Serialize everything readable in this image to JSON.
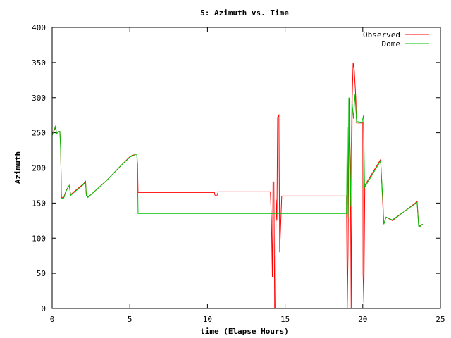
{
  "chart_data": {
    "type": "line",
    "title": "5: Azimuth vs. Time",
    "xlabel": "time (Elapse Hours)",
    "ylabel": "Azimuth",
    "xlim": [
      0,
      25
    ],
    "ylim": [
      0,
      400
    ],
    "xticks": [
      0,
      5,
      10,
      15,
      20,
      25
    ],
    "yticks": [
      0,
      50,
      100,
      150,
      200,
      250,
      300,
      350,
      400
    ],
    "grid": false,
    "legend_position": "top-right",
    "series": [
      {
        "name": "Observed",
        "color": "#ff0000",
        "points": [
          [
            0,
            247
          ],
          [
            0.2,
            257
          ],
          [
            0.3,
            249
          ],
          [
            0.45,
            252
          ],
          [
            0.5,
            252
          ],
          [
            0.55,
            227
          ],
          [
            0.6,
            158
          ],
          [
            0.75,
            158
          ],
          [
            0.9,
            168
          ],
          [
            1.1,
            175
          ],
          [
            1.2,
            162
          ],
          [
            1.4,
            166
          ],
          [
            2.0,
            177
          ],
          [
            2.15,
            181
          ],
          [
            2.2,
            162
          ],
          [
            2.3,
            159
          ],
          [
            2.5,
            162
          ],
          [
            3.5,
            182
          ],
          [
            4.5,
            205
          ],
          [
            5.05,
            217
          ],
          [
            5.45,
            220
          ],
          [
            5.5,
            205
          ],
          [
            5.52,
            175
          ],
          [
            5.53,
            165
          ],
          [
            10.45,
            165
          ],
          [
            10.5,
            160
          ],
          [
            10.6,
            160
          ],
          [
            10.7,
            166
          ],
          [
            14.05,
            166
          ],
          [
            14.12,
            125
          ],
          [
            14.18,
            45
          ],
          [
            14.22,
            180
          ],
          [
            14.28,
            180
          ],
          [
            14.33,
            0
          ],
          [
            14.38,
            0
          ],
          [
            14.42,
            155
          ],
          [
            14.47,
            125
          ],
          [
            14.52,
            272
          ],
          [
            14.6,
            275
          ],
          [
            14.65,
            80
          ],
          [
            14.7,
            110
          ],
          [
            14.78,
            160
          ],
          [
            18.95,
            160
          ],
          [
            19.0,
            0
          ],
          [
            19.05,
            80
          ],
          [
            19.12,
            300
          ],
          [
            19.2,
            200
          ],
          [
            19.25,
            0
          ],
          [
            19.32,
            300
          ],
          [
            19.38,
            350
          ],
          [
            19.45,
            340
          ],
          [
            19.55,
            300
          ],
          [
            19.6,
            264
          ],
          [
            19.9,
            264
          ],
          [
            20.0,
            265
          ],
          [
            20.02,
            50
          ],
          [
            20.07,
            8
          ],
          [
            20.13,
            175
          ],
          [
            21.15,
            212
          ],
          [
            21.35,
            120
          ],
          [
            21.5,
            130
          ],
          [
            21.9,
            125
          ],
          [
            23.5,
            152
          ],
          [
            23.6,
            118
          ],
          [
            23.7,
            118
          ],
          [
            23.85,
            120
          ]
        ]
      },
      {
        "name": "Dome",
        "color": "#00c000",
        "points": [
          [
            0,
            246
          ],
          [
            0.2,
            259
          ],
          [
            0.3,
            249
          ],
          [
            0.45,
            252
          ],
          [
            0.5,
            252
          ],
          [
            0.55,
            225
          ],
          [
            0.6,
            157
          ],
          [
            0.75,
            157
          ],
          [
            0.9,
            167
          ],
          [
            1.1,
            175
          ],
          [
            1.2,
            161
          ],
          [
            1.4,
            165
          ],
          [
            2.0,
            176
          ],
          [
            2.15,
            180
          ],
          [
            2.2,
            161
          ],
          [
            2.3,
            158
          ],
          [
            2.5,
            162
          ],
          [
            3.5,
            182
          ],
          [
            4.5,
            205
          ],
          [
            5.05,
            216
          ],
          [
            5.45,
            220
          ],
          [
            5.5,
            195
          ],
          [
            5.53,
            135
          ],
          [
            18.95,
            135
          ],
          [
            19.0,
            258
          ],
          [
            19.05,
            130
          ],
          [
            19.1,
            300
          ],
          [
            19.2,
            145
          ],
          [
            19.3,
            295
          ],
          [
            19.4,
            270
          ],
          [
            19.5,
            305
          ],
          [
            19.6,
            266
          ],
          [
            19.95,
            265
          ],
          [
            20.05,
            275
          ],
          [
            20.12,
            172
          ],
          [
            21.15,
            210
          ],
          [
            21.3,
            150
          ],
          [
            21.35,
            120
          ],
          [
            21.5,
            130
          ],
          [
            21.9,
            126
          ],
          [
            23.5,
            151
          ],
          [
            23.6,
            116
          ],
          [
            23.7,
            117
          ],
          [
            23.85,
            120
          ]
        ]
      }
    ]
  }
}
